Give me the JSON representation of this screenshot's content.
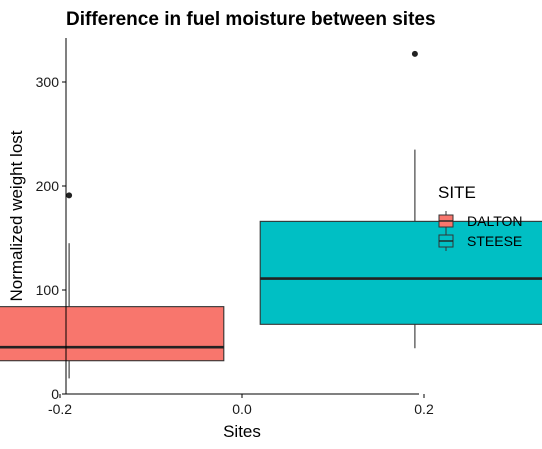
{
  "chart_data": {
    "type": "boxplot",
    "title": "Difference in fuel moisture between sites",
    "xlabel": "Sites",
    "ylabel": "Normalized weight lost",
    "xlim": [
      -0.4,
      0.4
    ],
    "ylim": [
      0,
      340
    ],
    "x_ticks": [
      -0.2,
      0.0,
      0.2
    ],
    "x_tick_labels": [
      "-0.2",
      "0.0",
      "0.2"
    ],
    "y_ticks": [
      0,
      100,
      200,
      300
    ],
    "y_tick_labels": [
      "0",
      "100",
      "200",
      "300"
    ],
    "grid": false,
    "legend": {
      "title": "SITE",
      "position": "right",
      "entries": [
        "DALTON",
        "STEESE"
      ]
    },
    "series": [
      {
        "name": "DALTON",
        "color": "#F8766D",
        "x_from": -0.36,
        "x_to": -0.02,
        "whisker_low": 15,
        "q1": 32,
        "median": 45,
        "q3": 84,
        "whisker_high": 145,
        "outliers": [
          191
        ]
      },
      {
        "name": "STEESE",
        "color": "#00BFC4",
        "x_from": 0.02,
        "x_to": 0.36,
        "whisker_low": 44,
        "q1": 67,
        "median": 111,
        "q3": 166,
        "whisker_high": 235,
        "outliers": [
          327
        ]
      }
    ]
  }
}
